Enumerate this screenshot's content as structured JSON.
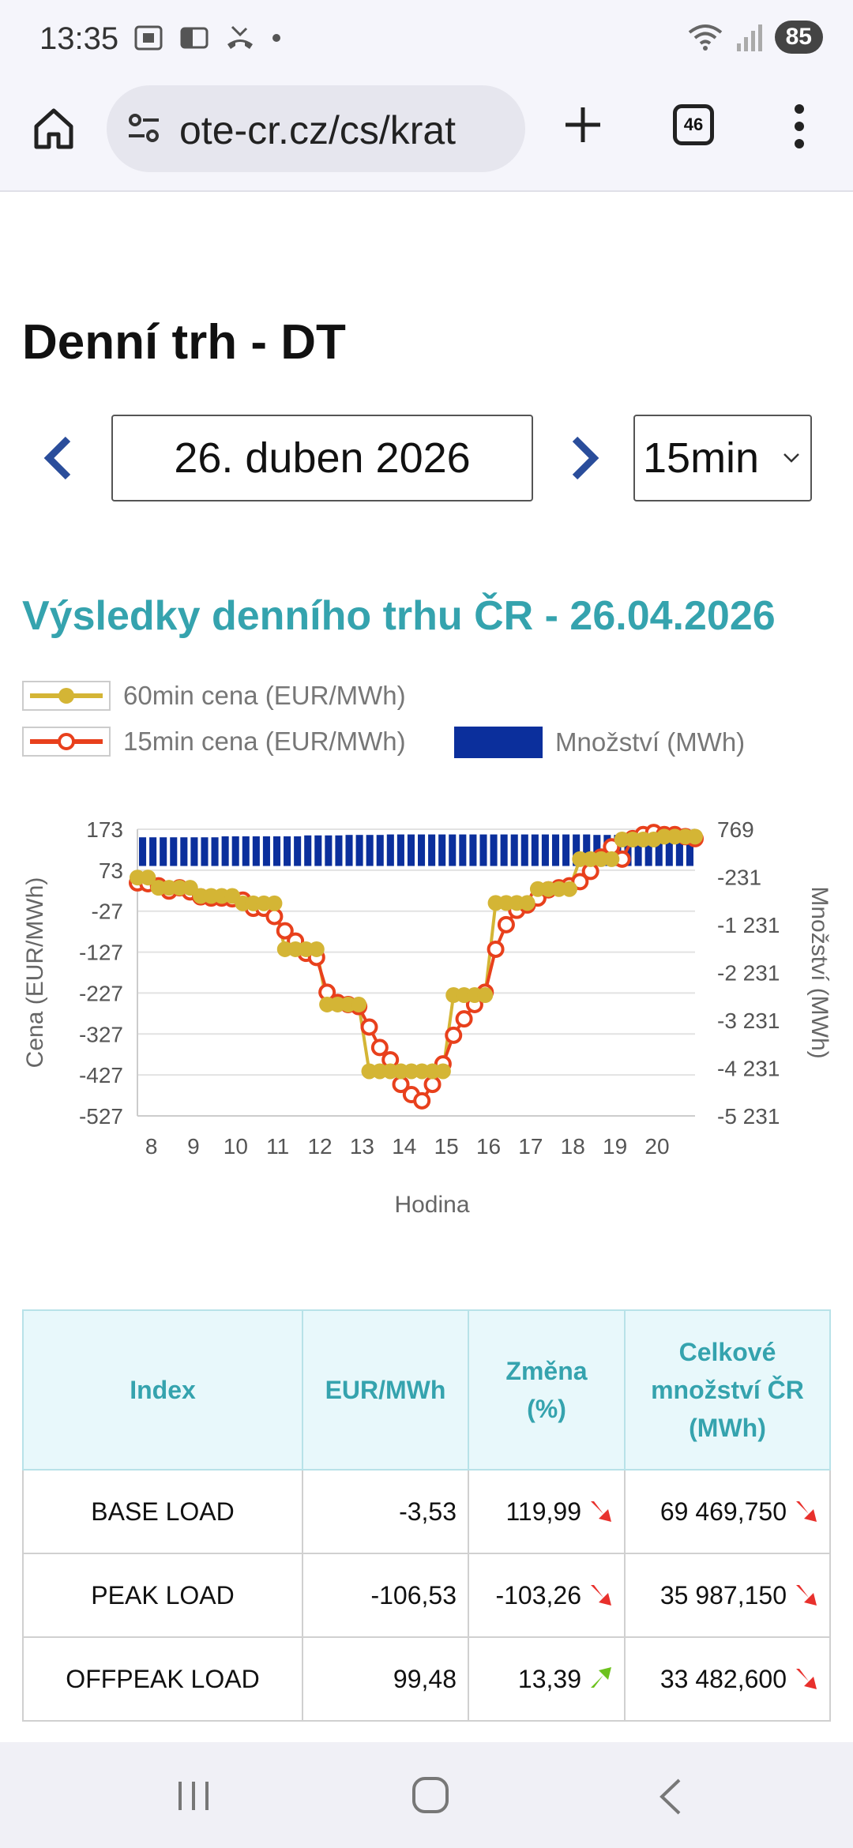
{
  "status_bar": {
    "time": "13:35",
    "battery": "85",
    "icons_left": [
      "screenshot-icon",
      "card-icon",
      "missed-call-icon",
      "dot-icon"
    ],
    "icons_right": [
      "wifi-icon",
      "signal-icon",
      "battery-icon"
    ]
  },
  "browser": {
    "url": "ote-cr.cz/cs/krat",
    "tab_count": "46"
  },
  "page": {
    "title": "Denní trh - DT",
    "date": "26. duben 2026",
    "interval": "15min",
    "results_title": "Výsledky denního trhu ČR - 26.04.2026"
  },
  "colors": {
    "accent": "#35a3ae",
    "nav_arrow": "#2a4d9b",
    "series_60": "#d4b535",
    "series_15": "#e8401c",
    "bars": "#0b2f9c",
    "down_arrow": "#e8302c",
    "up_arrow": "#6cc21c"
  },
  "chart_data": {
    "type": "line",
    "legend": [
      "60min cena (EUR/MWh)",
      "15min cena (EUR/MWh)",
      "Množství (MWh)"
    ],
    "xlabel": "Hodina",
    "ylabel": "Cena (EUR/MWh)",
    "ylabel_right": "Množství (MWh)",
    "x_ticks": [
      "8",
      "9",
      "10",
      "11",
      "12",
      "13",
      "14",
      "15",
      "16",
      "17",
      "18",
      "19",
      "20"
    ],
    "y_ticks": [
      "173",
      "73",
      "-27",
      "-127",
      "-227",
      "-327",
      "-427",
      "-527"
    ],
    "y_ticks_right": [
      "769",
      "-231",
      "-1 231",
      "-2 231",
      "-3 231",
      "-4 231",
      "-5 231"
    ],
    "ylim": [
      -527,
      173
    ],
    "ylim_right": [
      -5231,
      769
    ],
    "xlim": [
      7.67,
      20.9
    ],
    "grid": true,
    "series": [
      {
        "name": "60min cena (EUR/MWh)",
        "x": [
          7.67,
          7.92,
          8.17,
          8.42,
          8.67,
          8.92,
          9.17,
          9.42,
          9.67,
          9.92,
          10.17,
          10.42,
          10.67,
          10.92,
          11.17,
          11.42,
          11.67,
          11.92,
          12.17,
          12.42,
          12.67,
          12.92,
          13.17,
          13.42,
          13.67,
          13.92,
          14.17,
          14.42,
          14.67,
          14.92,
          15.17,
          15.42,
          15.67,
          15.92,
          16.17,
          16.42,
          16.67,
          16.92,
          17.17,
          17.42,
          17.67,
          17.92,
          18.17,
          18.42,
          18.67,
          18.92,
          19.17,
          19.42,
          19.67,
          19.92,
          20.17,
          20.42,
          20.67,
          20.9
        ],
        "values": [
          55,
          55,
          30,
          30,
          30,
          30,
          10,
          10,
          10,
          10,
          -8,
          -8,
          -8,
          -8,
          -120,
          -120,
          -120,
          -120,
          -255,
          -255,
          -255,
          -255,
          -418,
          -418,
          -418,
          -418,
          -418,
          -418,
          -418,
          -418,
          -232,
          -232,
          -232,
          -232,
          -7,
          -7,
          -7,
          -7,
          27,
          27,
          27,
          27,
          100,
          100,
          100,
          100,
          148,
          148,
          148,
          148,
          155,
          155,
          155,
          155
        ]
      },
      {
        "name": "15min cena (EUR/MWh)",
        "x": [
          7.67,
          7.92,
          8.17,
          8.42,
          8.67,
          8.92,
          9.17,
          9.42,
          9.67,
          9.92,
          10.17,
          10.42,
          10.67,
          10.92,
          11.17,
          11.42,
          11.67,
          11.92,
          12.17,
          12.42,
          12.67,
          12.92,
          13.17,
          13.42,
          13.67,
          13.92,
          14.17,
          14.42,
          14.67,
          14.92,
          15.17,
          15.42,
          15.67,
          15.92,
          16.17,
          16.42,
          16.67,
          16.92,
          17.17,
          17.42,
          17.67,
          17.92,
          18.17,
          18.42,
          18.67,
          18.92,
          19.17,
          19.42,
          19.67,
          19.92,
          20.17,
          20.42,
          20.67,
          20.9
        ],
        "values": [
          42,
          40,
          35,
          22,
          30,
          20,
          8,
          5,
          5,
          3,
          0,
          -20,
          -20,
          -40,
          -75,
          -100,
          -130,
          -140,
          -225,
          -250,
          -255,
          -260,
          -310,
          -360,
          -390,
          -450,
          -475,
          -490,
          -450,
          -400,
          -330,
          -290,
          -255,
          -225,
          -120,
          -60,
          -25,
          -12,
          5,
          25,
          30,
          35,
          45,
          70,
          105,
          130,
          100,
          150,
          160,
          165,
          160,
          160,
          155,
          150
        ]
      },
      {
        "name": "Množství (MWh)",
        "values": [
          600,
          600,
          600,
          600,
          600,
          600,
          600,
          600,
          620,
          620,
          620,
          620,
          620,
          620,
          620,
          620,
          640,
          640,
          640,
          640,
          650,
          650,
          650,
          650,
          660,
          660,
          660,
          660,
          660,
          660,
          660,
          660,
          660,
          660,
          660,
          660,
          660,
          660,
          660,
          660,
          660,
          660,
          660,
          660,
          650,
          650,
          650,
          650,
          640,
          640,
          630,
          630,
          620,
          620
        ]
      }
    ]
  },
  "table": {
    "headers": {
      "index": "Index",
      "eur": "EUR/MWh",
      "change_1": "Změna",
      "change_2": "(%)",
      "total_1": "Celkové",
      "total_2": "množství ČR",
      "total_3": "(MWh)"
    },
    "rows": [
      {
        "index": "BASE LOAD",
        "eur": "-3,53",
        "change": "119,99",
        "change_dir": "down",
        "total": "69 469,750",
        "total_dir": "down"
      },
      {
        "index": "PEAK LOAD",
        "eur": "-106,53",
        "change": "-103,26",
        "change_dir": "down",
        "total": "35 987,150",
        "total_dir": "down"
      },
      {
        "index": "OFFPEAK LOAD",
        "eur": "99,48",
        "change": "13,39",
        "change_dir": "up",
        "total": "33 482,600",
        "total_dir": "down"
      }
    ]
  }
}
